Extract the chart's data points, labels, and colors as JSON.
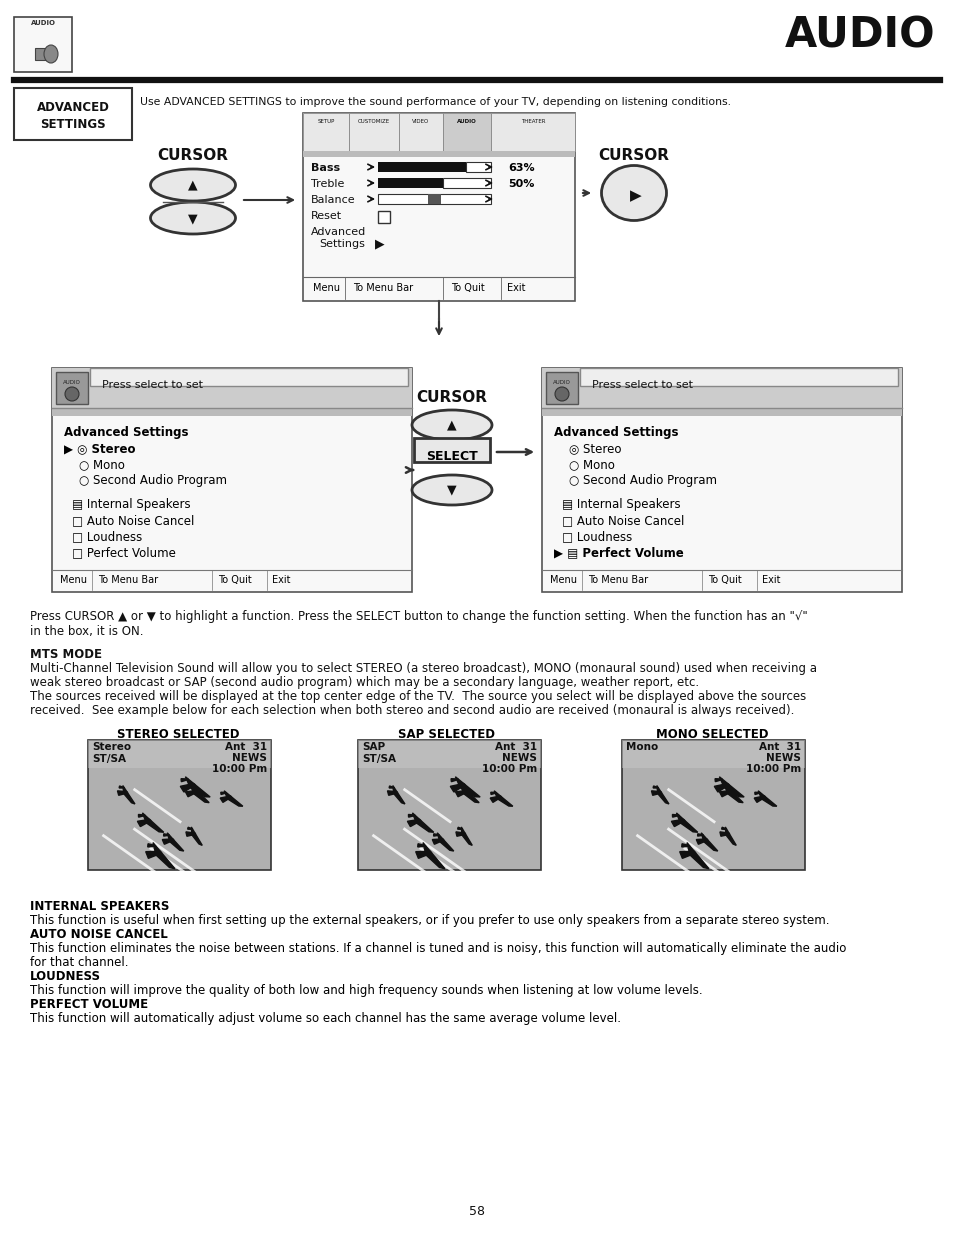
{
  "page_title": "AUDIO",
  "page_number": "58",
  "bg_color": "#ffffff",
  "text_color": "#000000",
  "header_desc": "Use ADVANCED SETTINGS to improve the sound performance of your TV, depending on listening conditions.",
  "press_cursor_text": "Press CURSOR ▲ or ▼ to highlight a function. Press the SELECT button to change the function setting. When the function has an \"√\"\nin the box, it is ON.",
  "mts_heading": "MTS MODE",
  "mts_text1": "Multi-Channel Television Sound will allow you to select STEREO (a stereo broadcast), MONO (monaural sound) used when receiving a",
  "mts_text2": "weak stereo broadcast or SAP (second audio program) which may be a secondary language, weather report, etc.",
  "mts_text3": "The sources received will be displayed at the top center edge of the TV.  The source you select will be displayed above the sources",
  "mts_text4": "received.  See example below for each selection when both stereo and second audio are received (monaural is always received).",
  "stereo_label": "STEREO SELECTED",
  "sap_label": "SAP SELECTED",
  "mono_label": "MONO SELECTED",
  "int_spk_heading": "INTERNAL SPEAKERS",
  "int_spk_text": "This function is useful when first setting up the external speakers, or if you prefer to use only speakers from a separate stereo system.",
  "anc_heading": "AUTO NOISE CANCEL",
  "anc_text1": "This function eliminates the noise between stations. If a channel is tuned and is noisy, this function will automatically eliminate the audio",
  "anc_text2": "for that channel.",
  "loud_heading": "LOUDNESS",
  "loud_text": "This function will improve the quality of both low and high frequency sounds when listening at low volume levels.",
  "pv_heading": "PERFECT VOLUME",
  "pv_text": "This function will automatically adjust volume so each channel has the same average volume level."
}
